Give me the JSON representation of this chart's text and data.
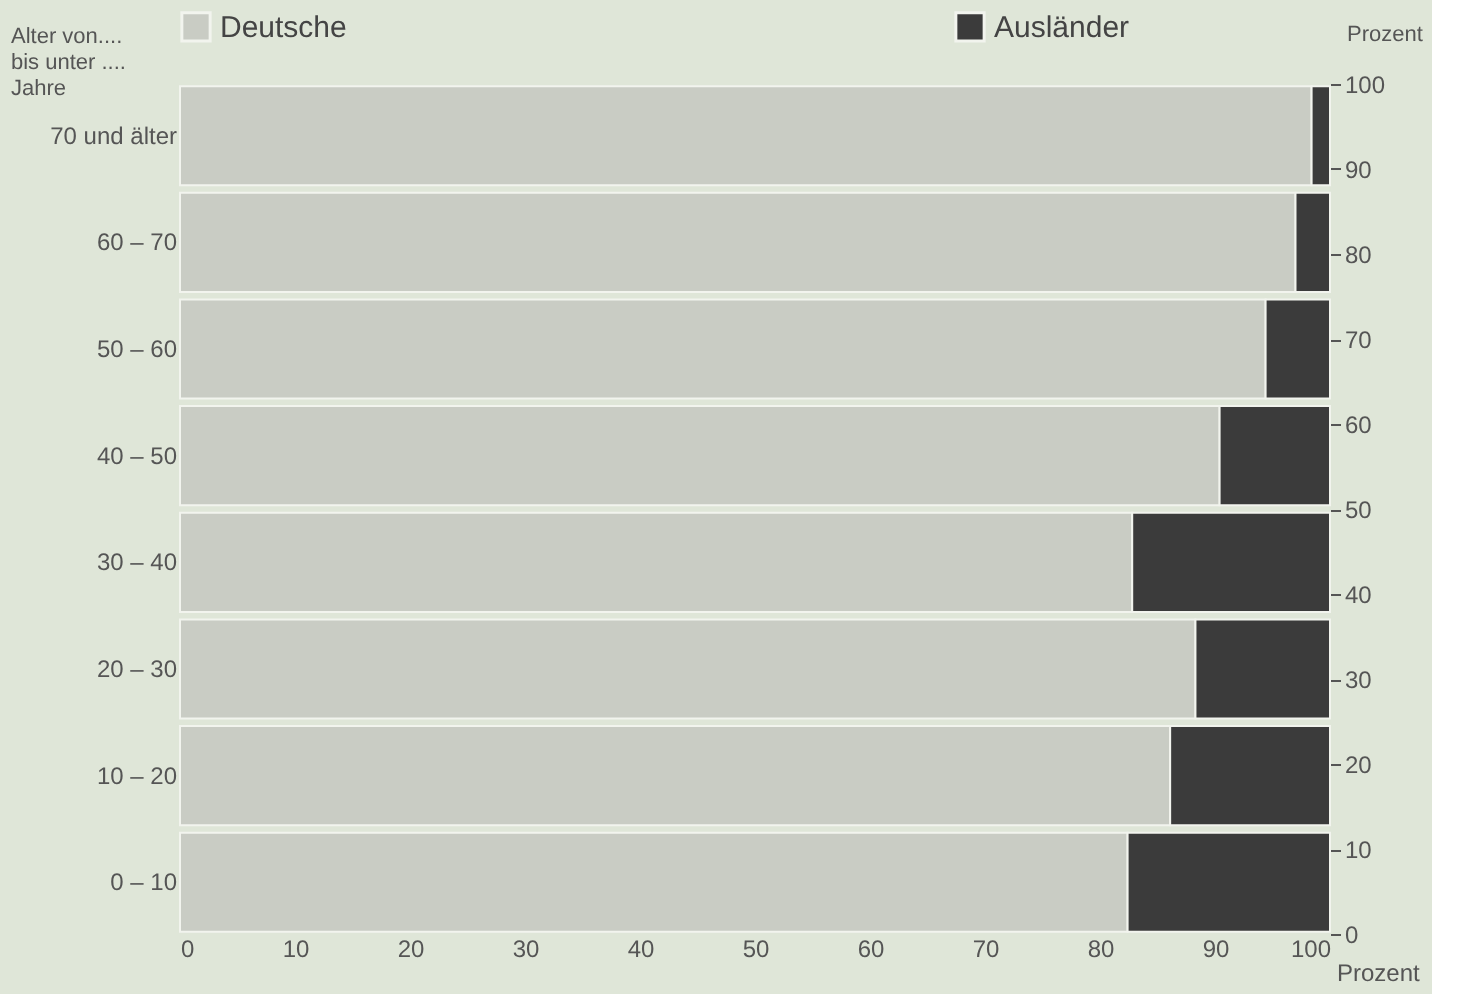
{
  "chart_data": {
    "type": "bar",
    "orientation": "horizontal",
    "stacked": true,
    "categories": [
      "70 und älter",
      "60 – 70",
      "50 – 60",
      "40 – 50",
      "30 – 40",
      "20 – 30",
      "10 – 20",
      "0 – 10"
    ],
    "series": [
      {
        "name": "Deutsche",
        "color": "#c9ccc4",
        "values": [
          98.4,
          97.0,
          94.4,
          90.4,
          82.8,
          88.3,
          86.1,
          82.4
        ]
      },
      {
        "name": "Ausländer",
        "color": "#3b3b3b",
        "values": [
          1.6,
          3.0,
          5.6,
          9.6,
          17.2,
          11.7,
          13.9,
          17.6
        ]
      }
    ],
    "xlim": [
      0,
      100
    ],
    "xticks": [
      0,
      10,
      20,
      30,
      40,
      50,
      60,
      70,
      80,
      90,
      100
    ],
    "xlabel": "Prozent",
    "ylabel": "Alter von.... bis unter .... Jahre",
    "y2lim": [
      0,
      100
    ],
    "y2ticks": [
      0,
      10,
      20,
      30,
      40,
      50,
      60,
      70,
      80,
      90,
      100
    ],
    "y2label": "Prozent",
    "legend": "top",
    "grid": false
  }
}
